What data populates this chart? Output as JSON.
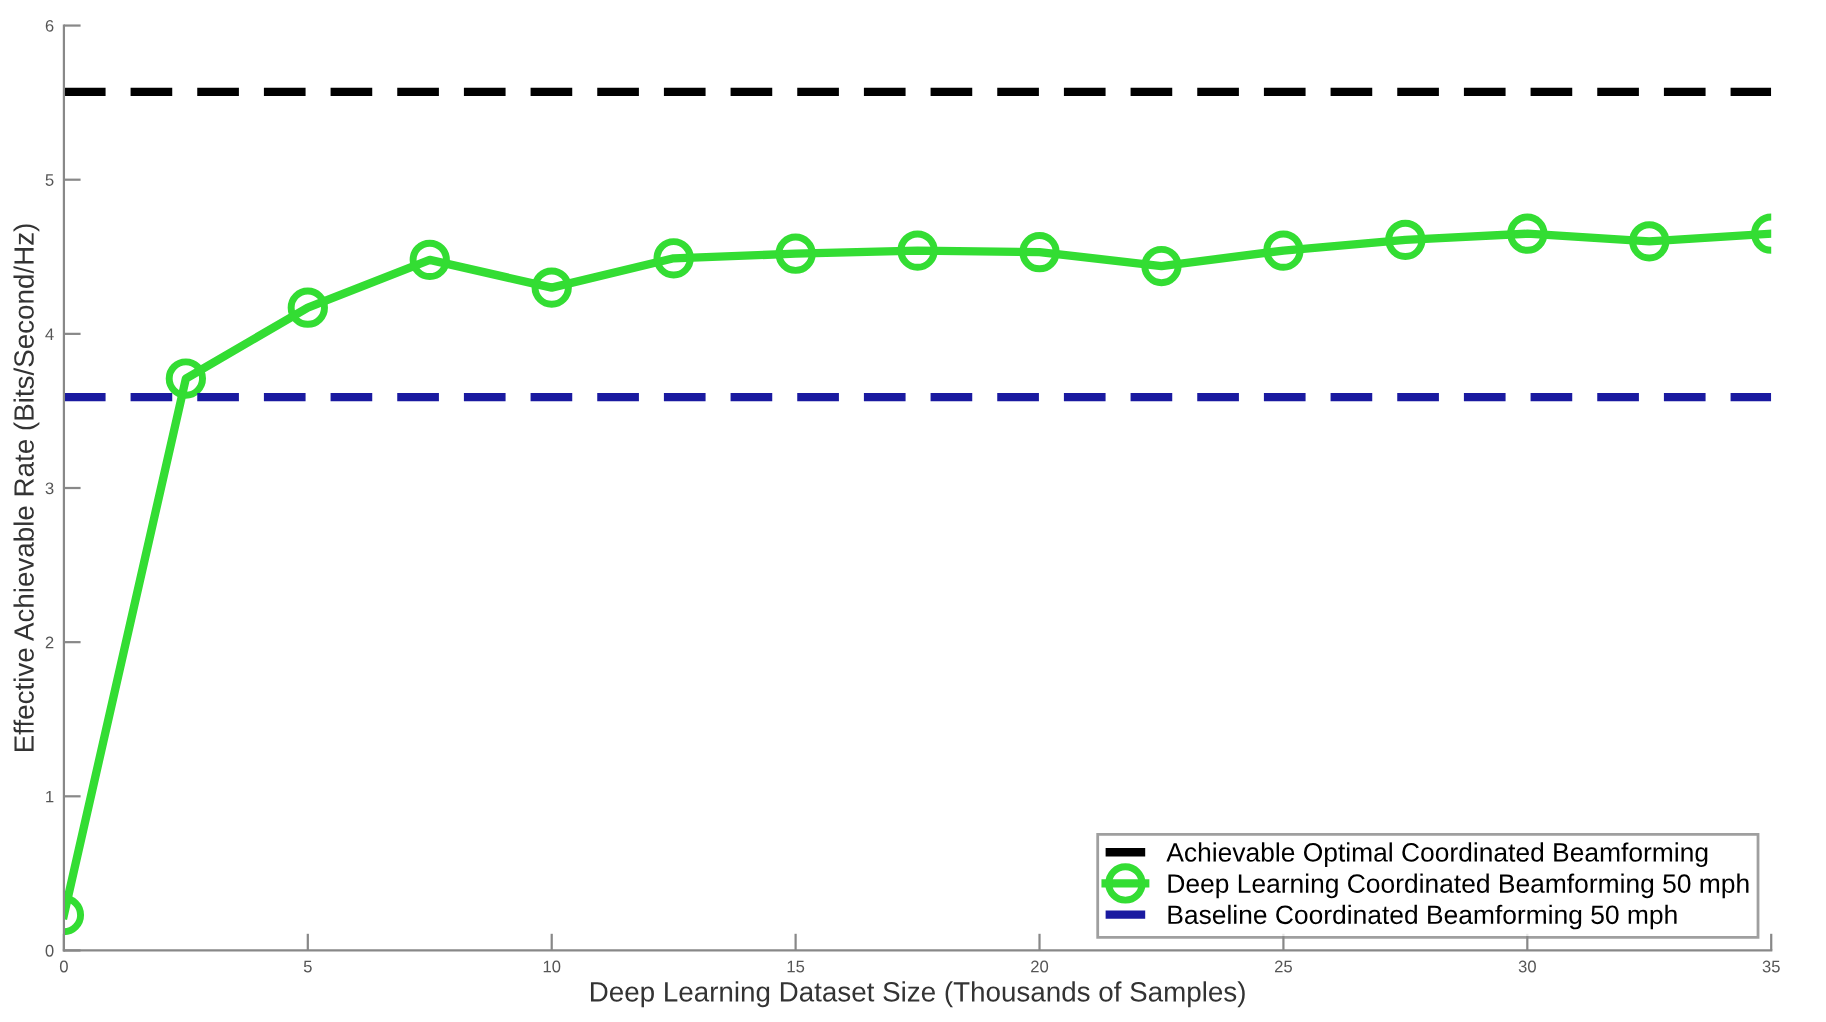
{
  "chart_data": {
    "type": "line",
    "xlabel": "Deep Learning Dataset Size (Thousands of Samples)",
    "ylabel": "Effective Achievable Rate (Bits/Second/Hz)",
    "xlim": [
      0,
      35
    ],
    "xticks": [
      0,
      5,
      10,
      15,
      20,
      25,
      30,
      35
    ],
    "ylim": [
      0,
      6
    ],
    "yticks": [
      0,
      1,
      2,
      3,
      4,
      5,
      6
    ],
    "grid": false,
    "legend": "bottom right",
    "series": [
      {
        "name": "Achievable Optimal Coordinated Beamforming",
        "color": "#000000",
        "line_style": "dashed",
        "marker": "none",
        "x": [
          0,
          35
        ],
        "values": [
          5.57,
          5.57
        ]
      },
      {
        "name": "Deep Learning Coordinated Beamforming 50 mph",
        "color": "#33dd33",
        "line_style": "solid",
        "marker": "circle",
        "x": [
          0,
          2.5,
          5,
          7.5,
          10,
          12.5,
          15,
          17.5,
          20,
          22.5,
          25,
          27.5,
          30,
          32.5,
          35
        ],
        "values": [
          0.23,
          3.71,
          4.17,
          4.48,
          4.3,
          4.49,
          4.52,
          4.54,
          4.53,
          4.44,
          4.54,
          4.61,
          4.65,
          4.6,
          4.65
        ]
      },
      {
        "name": "Baseline Coordinated Beamforming 50 mph",
        "color": "#1a1aa0",
        "line_style": "dashed",
        "marker": "none",
        "x": [
          0,
          35
        ],
        "values": [
          3.59,
          3.59
        ]
      }
    ]
  }
}
